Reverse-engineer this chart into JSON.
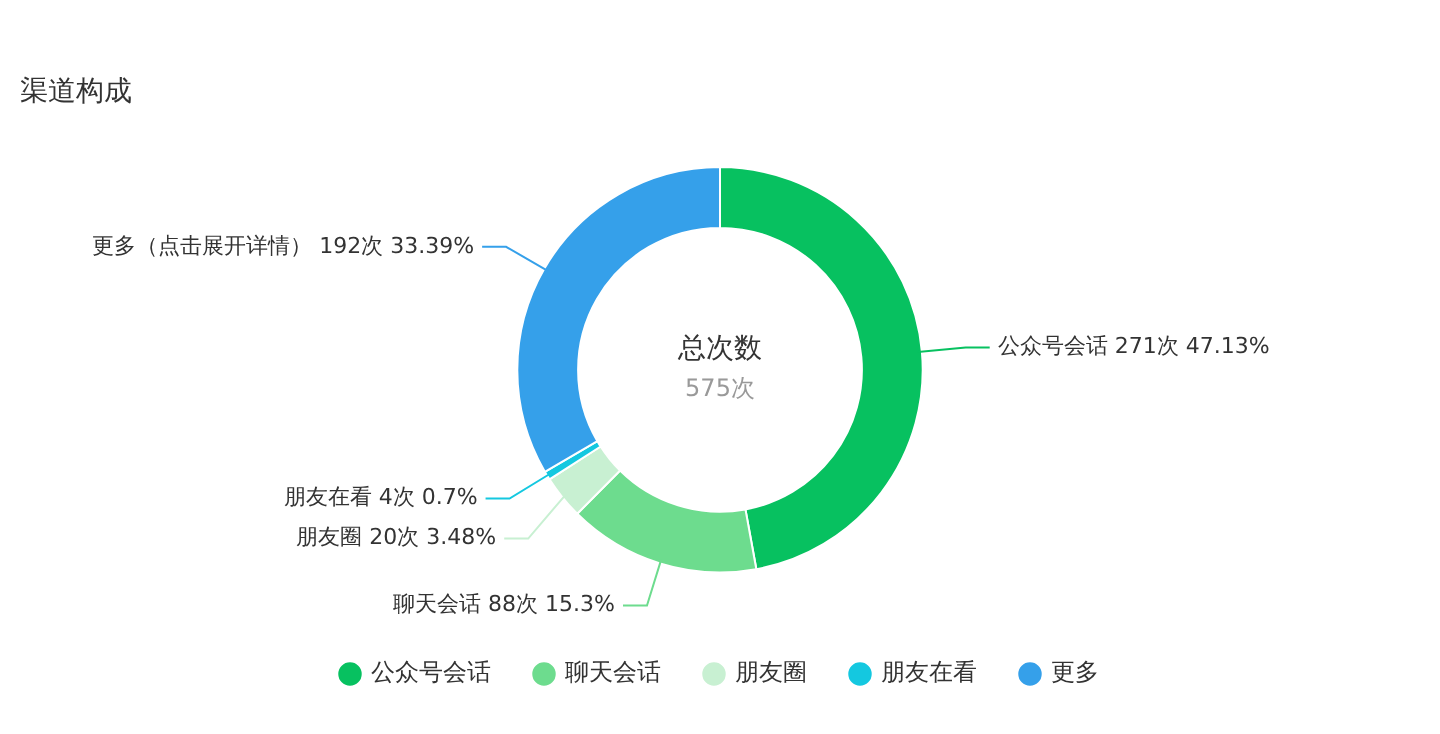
{
  "chart_data": {
    "type": "donut",
    "title": "渠道构成",
    "categories": [
      "公众号会话",
      "聊天会话",
      "朋友圈",
      "朋友在看",
      "更多"
    ],
    "values": [
      271,
      88,
      20,
      4,
      192
    ],
    "colors": [
      "#07c160",
      "#6ddc8e",
      "#c8f0d2",
      "#14c8e0",
      "#35a0ea"
    ],
    "value_labels": [
      "公众号会话 271次 47.13%",
      "聊天会话 88次 15.3%",
      "朋友圈 20次 3.48%",
      "朋友在看 4次 0.7%",
      "更多（点击展开详情） 192次 33.39%"
    ],
    "annotations": [
      "总次数",
      "575次"
    ],
    "legend": "bottom"
  }
}
